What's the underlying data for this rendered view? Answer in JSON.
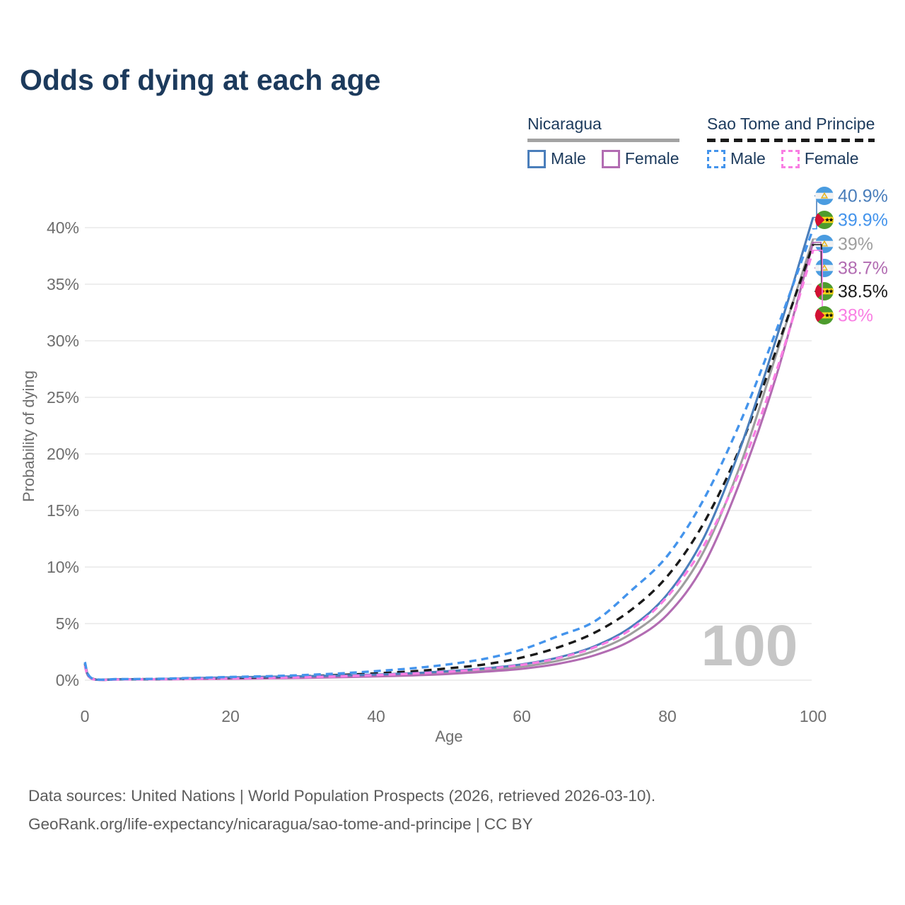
{
  "title": "Odds of dying at each age",
  "legend": {
    "groups": [
      {
        "label": "Nicaragua",
        "line_style": "solid",
        "underline_color": "#a3a3a3",
        "items": [
          {
            "label": "Male",
            "color": "#4a7ebb",
            "dash": false
          },
          {
            "label": "Female",
            "color": "#b26cb2",
            "dash": false
          }
        ]
      },
      {
        "label": "Sao Tome and Principe",
        "line_style": "dashed",
        "underline_color": "#1a1a1a",
        "items": [
          {
            "label": "Male",
            "color": "#4494ec",
            "dash": true
          },
          {
            "label": "Female",
            "color": "#f97ee3",
            "dash": true
          }
        ]
      }
    ]
  },
  "chart_data": {
    "type": "line",
    "title": "Odds of dying at each age",
    "xlabel": "Age",
    "ylabel": "Probability of dying",
    "xlim": [
      0,
      100
    ],
    "ylim_percent": [
      0,
      42
    ],
    "x_ticks": [
      0,
      20,
      40,
      60,
      80,
      100
    ],
    "y_tick_labels": [
      "0%",
      "5%",
      "10%",
      "15%",
      "20%",
      "25%",
      "30%",
      "35%",
      "40%"
    ],
    "grid": "horizontal",
    "legend_position": "top-right",
    "watermark": "100",
    "ages": [
      0,
      1,
      5,
      10,
      15,
      20,
      25,
      30,
      35,
      40,
      45,
      50,
      55,
      60,
      65,
      70,
      75,
      80,
      85,
      90,
      95,
      100
    ],
    "series": [
      {
        "id": "ni_male",
        "name": "Nicaragua Male",
        "color": "#4a7ebb",
        "dash": false,
        "values": [
          1.5,
          0.12,
          0.08,
          0.1,
          0.18,
          0.25,
          0.3,
          0.35,
          0.42,
          0.5,
          0.62,
          0.8,
          1.05,
          1.4,
          2.0,
          3.0,
          4.7,
          7.6,
          12.6,
          20.5,
          30.3,
          40.9
        ],
        "end_label": "40.9%"
      },
      {
        "id": "ni_female",
        "name": "Nicaragua Female",
        "color": "#b26cb2",
        "dash": false,
        "values": [
          1.2,
          0.1,
          0.06,
          0.07,
          0.1,
          0.12,
          0.16,
          0.2,
          0.26,
          0.33,
          0.42,
          0.55,
          0.75,
          1.0,
          1.45,
          2.2,
          3.5,
          5.8,
          10.2,
          17.6,
          27.0,
          38.7
        ],
        "end_label": "38.7%"
      },
      {
        "id": "ni_total",
        "name": "Nicaragua",
        "color": "#9e9e9e",
        "dash": false,
        "values": [
          1.35,
          0.11,
          0.07,
          0.09,
          0.14,
          0.19,
          0.23,
          0.28,
          0.34,
          0.42,
          0.52,
          0.68,
          0.9,
          1.2,
          1.72,
          2.6,
          4.1,
          6.7,
          11.4,
          19.0,
          28.9,
          39.0
        ],
        "end_label": "39%"
      },
      {
        "id": "st_male",
        "name": "Sao Tome and Principe Male",
        "color": "#4494ec",
        "dash": true,
        "values": [
          1.6,
          0.15,
          0.1,
          0.12,
          0.2,
          0.28,
          0.35,
          0.45,
          0.6,
          0.8,
          1.05,
          1.4,
          1.9,
          2.7,
          3.9,
          5.2,
          7.9,
          11.0,
          16.0,
          22.8,
          31.0,
          39.9
        ],
        "end_label": "39.9%"
      },
      {
        "id": "st_female",
        "name": "Sao Tome and Principe Female",
        "color": "#f97ee3",
        "dash": true,
        "values": [
          1.3,
          0.11,
          0.07,
          0.08,
          0.12,
          0.15,
          0.2,
          0.26,
          0.34,
          0.45,
          0.58,
          0.75,
          1.0,
          1.35,
          1.95,
          2.9,
          4.5,
          7.4,
          11.9,
          18.6,
          27.4,
          38.0
        ],
        "end_label": "38%"
      },
      {
        "id": "st_total",
        "name": "Sao Tome and Principe",
        "color": "#1a1a1a",
        "dash": true,
        "values": [
          1.45,
          0.13,
          0.08,
          0.1,
          0.16,
          0.21,
          0.27,
          0.35,
          0.46,
          0.6,
          0.78,
          1.05,
          1.4,
          2.0,
          2.9,
          4.2,
          6.2,
          9.2,
          13.9,
          20.6,
          29.3,
          38.5
        ],
        "end_label": "38.5%"
      }
    ],
    "end_labels": [
      {
        "series": "ni_male",
        "text": "40.9%",
        "color": "#4a7ebb",
        "flag": "nicaragua"
      },
      {
        "series": "st_male",
        "text": "39.9%",
        "color": "#4494ec",
        "flag": "sao_tome"
      },
      {
        "series": "ni_total",
        "text": "39%",
        "color": "#9e9e9e",
        "flag": "nicaragua"
      },
      {
        "series": "ni_female",
        "text": "38.7%",
        "color": "#b26cb2",
        "flag": "nicaragua"
      },
      {
        "series": "st_total",
        "text": "38.5%",
        "color": "#1a1a1a",
        "flag": "sao_tome"
      },
      {
        "series": "st_female",
        "text": "38%",
        "color": "#f97ee3",
        "flag": "sao_tome"
      }
    ]
  },
  "flags": {
    "nicaragua": {
      "band": "#4a9ce0",
      "white": "#f2f2f2",
      "emblem_gold": "#e8b422",
      "emblem_fill": "#d8ecfa"
    },
    "sao_tome": {
      "green": "#4d9c2d",
      "yellow": "#ffd617",
      "red": "#d21034",
      "star": "#111111"
    }
  },
  "style": {
    "title_color": "#1c3a5c",
    "grid_color": "#e9e9e9",
    "tick_color": "#6e6e6e",
    "watermark_color": "#c6c6c6",
    "footer_color": "#5c5c5c",
    "background": "#ffffff"
  },
  "footer": {
    "line1": "Data sources: United Nations | World Population Prospects (2026, retrieved 2026-03-10).",
    "line2": "GeoRank.org/life-expectancy/nicaragua/sao-tome-and-principe | CC BY"
  }
}
